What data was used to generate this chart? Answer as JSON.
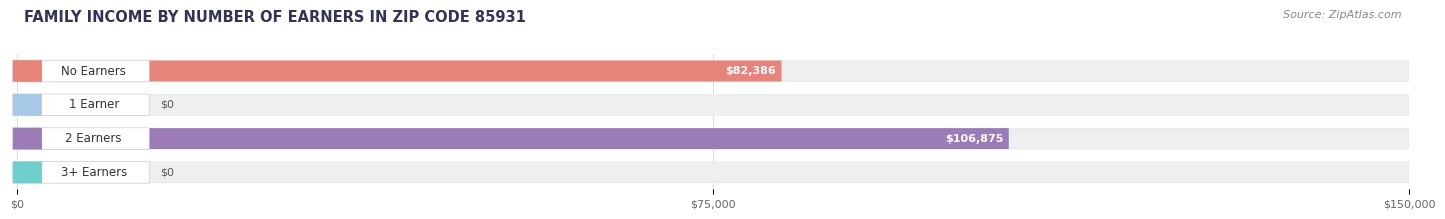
{
  "title": "FAMILY INCOME BY NUMBER OF EARNERS IN ZIP CODE 85931",
  "source": "Source: ZipAtlas.com",
  "categories": [
    "No Earners",
    "1 Earner",
    "2 Earners",
    "3+ Earners"
  ],
  "values": [
    82386,
    0,
    106875,
    0
  ],
  "bar_colors": [
    "#E8837A",
    "#A8C8E8",
    "#9B7BB8",
    "#6ECFCE"
  ],
  "bar_bg_color": "#EFEFEF",
  "xlim": [
    0,
    150000
  ],
  "xticks": [
    0,
    75000,
    150000
  ],
  "xtick_labels": [
    "$0",
    "$75,000",
    "$150,000"
  ],
  "value_labels": [
    "$82,386",
    "$0",
    "$106,875",
    "$0"
  ],
  "title_fontsize": 10.5,
  "source_fontsize": 8,
  "label_fontsize": 8.5,
  "value_fontsize": 8,
  "background_color": "#FFFFFF",
  "bar_height": 0.62
}
